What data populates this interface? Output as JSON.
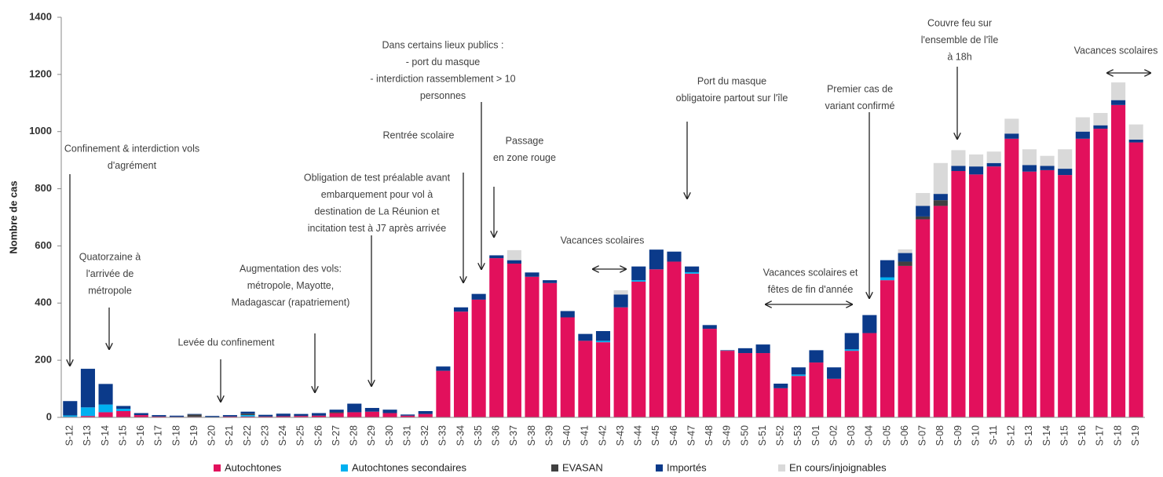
{
  "chart_data": {
    "type": "bar",
    "stacked": true,
    "y_label": "Nombre de cas",
    "ylim": [
      0,
      1400
    ],
    "yticks": [
      0,
      200,
      400,
      600,
      800,
      1000,
      1200,
      1400
    ],
    "categories": [
      "S-12",
      "S-13",
      "S-14",
      "S-15",
      "S-16",
      "S-17",
      "S-18",
      "S-19",
      "S-20",
      "S-21",
      "S-22",
      "S-23",
      "S-24",
      "S-25",
      "S-26",
      "S-27",
      "S-28",
      "S-29",
      "S-30",
      "S-31",
      "S-32",
      "S-33",
      "S-34",
      "S-35",
      "S-36",
      "S-37",
      "S-38",
      "S-39",
      "S-40",
      "S-41",
      "S-42",
      "S-43",
      "S-44",
      "S-45",
      "S-46",
      "S-47",
      "S-48",
      "S-49",
      "S-50",
      "S-51",
      "S-52",
      "S-53",
      "S-01",
      "S-02",
      "S-03",
      "S-04",
      "S-05",
      "S-06",
      "S-07",
      "S-08",
      "S-09",
      "S-10",
      "S-11",
      "S-12",
      "S-13",
      "S-14",
      "S-15",
      "S-16",
      "S-17",
      "S-18",
      "S-19"
    ],
    "series": [
      {
        "name": "Autochtones",
        "color": "#e2105c",
        "values": [
          2,
          5,
          18,
          22,
          8,
          3,
          2,
          2,
          0,
          3,
          3,
          3,
          4,
          5,
          6,
          15,
          18,
          20,
          15,
          6,
          12,
          163,
          370,
          412,
          557,
          538,
          492,
          470,
          350,
          268,
          263,
          385,
          475,
          518,
          545,
          503,
          310,
          233,
          225,
          225,
          102,
          145,
          192,
          135,
          233,
          295,
          480,
          530,
          693,
          740,
          862,
          850,
          878,
          975,
          860,
          865,
          848,
          975,
          1010,
          1093,
          962
        ]
      },
      {
        "name": "Autochtones secondaires",
        "color": "#00b0f0",
        "values": [
          5,
          30,
          27,
          8,
          0,
          0,
          0,
          0,
          0,
          0,
          5,
          0,
          0,
          0,
          0,
          0,
          0,
          0,
          0,
          0,
          0,
          0,
          0,
          0,
          0,
          0,
          0,
          0,
          0,
          0,
          5,
          0,
          5,
          0,
          0,
          5,
          0,
          0,
          0,
          0,
          0,
          5,
          0,
          0,
          5,
          0,
          10,
          0,
          0,
          0,
          0,
          0,
          0,
          0,
          0,
          0,
          0,
          0,
          0,
          0,
          0
        ]
      },
      {
        "name": "EVASAN",
        "color": "#404040",
        "values": [
          0,
          0,
          0,
          0,
          0,
          0,
          0,
          8,
          0,
          0,
          5,
          0,
          0,
          0,
          0,
          3,
          0,
          0,
          0,
          0,
          0,
          0,
          0,
          0,
          0,
          0,
          0,
          0,
          0,
          0,
          0,
          0,
          0,
          0,
          0,
          0,
          0,
          0,
          0,
          0,
          0,
          0,
          0,
          0,
          0,
          0,
          0,
          15,
          10,
          20,
          0,
          0,
          0,
          0,
          0,
          0,
          0,
          0,
          0,
          0,
          0
        ]
      },
      {
        "name": "Importés",
        "color": "#0b3a8a",
        "values": [
          50,
          135,
          72,
          10,
          7,
          5,
          4,
          2,
          5,
          5,
          7,
          6,
          9,
          7,
          9,
          9,
          30,
          13,
          12,
          4,
          10,
          15,
          15,
          20,
          10,
          12,
          15,
          10,
          22,
          24,
          34,
          45,
          48,
          69,
          35,
          20,
          13,
          2,
          17,
          30,
          16,
          25,
          43,
          40,
          57,
          63,
          60,
          30,
          37,
          22,
          18,
          28,
          12,
          18,
          23,
          15,
          22,
          25,
          12,
          17,
          10
        ]
      },
      {
        "name": "En cours/injoignables",
        "color": "#d9d9d9",
        "values": [
          0,
          0,
          0,
          0,
          0,
          0,
          0,
          0,
          0,
          0,
          0,
          0,
          0,
          0,
          0,
          0,
          0,
          0,
          0,
          0,
          0,
          0,
          0,
          0,
          0,
          35,
          0,
          0,
          0,
          0,
          0,
          15,
          0,
          0,
          0,
          0,
          0,
          0,
          0,
          0,
          0,
          0,
          0,
          0,
          0,
          0,
          0,
          13,
          45,
          108,
          55,
          42,
          40,
          52,
          55,
          35,
          68,
          50,
          43,
          62,
          53
        ]
      }
    ],
    "annotations": [
      {
        "lines": [
          "Confinement &  interdiction vols",
          "d'agrément"
        ]
      },
      {
        "lines": [
          "Quatorzaine à",
          "l'arrivée de",
          "métropole"
        ]
      },
      {
        "lines": [
          "Levée du confinement"
        ]
      },
      {
        "lines": [
          "Augmentation des vols:",
          "métropole, Mayotte,",
          "Madagascar (rapatriement)"
        ]
      },
      {
        "lines": [
          "Obligation de test préalable avant",
          "embarquement pour vol à",
          "destination de La Réunion et",
          "incitation test à J7 après arrivée"
        ]
      },
      {
        "lines": [
          "Rentrée scolaire"
        ]
      },
      {
        "lines": [
          "Dans certains lieux publics :",
          "- port du masque",
          "- interdiction rassemblement > 10",
          "personnes"
        ]
      },
      {
        "lines": [
          "Passage",
          "en zone rouge"
        ]
      },
      {
        "lines": [
          "Vacances scolaires"
        ]
      },
      {
        "lines": [
          "Port du masque",
          "obligatoire partout sur l'île"
        ]
      },
      {
        "lines": [
          "Premier cas de",
          "variant confirmé"
        ]
      },
      {
        "lines": [
          "Vacances scolaires et",
          "fêtes de fin d'année"
        ]
      },
      {
        "lines": [
          "Couvre feu sur",
          "l'ensemble de l'île",
          "à 18h"
        ]
      },
      {
        "lines": [
          "Vacances scolaires"
        ]
      }
    ]
  }
}
